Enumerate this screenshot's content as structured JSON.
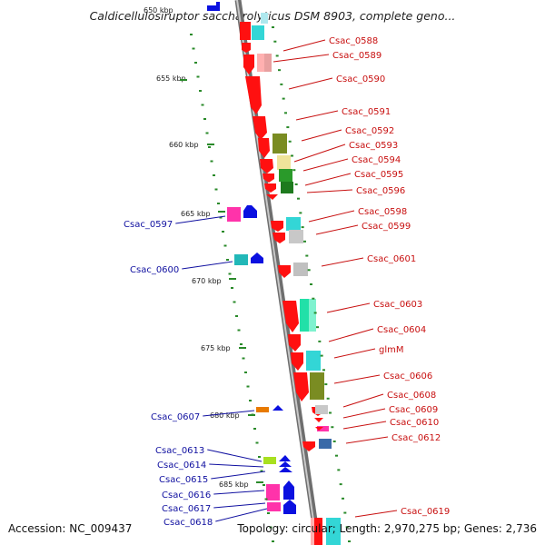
{
  "title": "Caldicellulosiruptor saccharolyticus DSM 8903, complete geno...",
  "top_kbp": "650 kbp",
  "accession": "Accession: NC_009437",
  "stats": "Topology: circular; Length: 2,970,275 bp; Genes: 2,736",
  "colors": {
    "forward": "#ff1010",
    "reverse": "#0a10e0",
    "backbone": "#9a9a9a",
    "right_label": "#c81010",
    "left_label": "#1010a0",
    "tick": "#2a8a2a"
  },
  "kbp_marks": [
    "655 kbp",
    "660 kbp",
    "665 kbp",
    "670 kbp",
    "675 kbp",
    "680 kbp",
    "685 kbp"
  ],
  "right_labels": [
    "Csac_0588",
    "Csac_0589",
    "Csac_0590",
    "Csac_0591",
    "Csac_0592",
    "Csac_0593",
    "Csac_0594",
    "Csac_0595",
    "Csac_0596",
    "Csac_0598",
    "Csac_0599",
    "Csac_0601",
    "Csac_0603",
    "Csac_0604",
    "glmM",
    "Csac_0606",
    "Csac_0608",
    "Csac_0609",
    "Csac_0610",
    "Csac_0612",
    "Csac_0619"
  ],
  "left_labels": [
    "Csac_0597",
    "Csac_0600",
    "Csac_0607",
    "Csac_0613",
    "Csac_0614",
    "Csac_0615",
    "Csac_0616",
    "Csac_0617",
    "Csac_0618"
  ]
}
